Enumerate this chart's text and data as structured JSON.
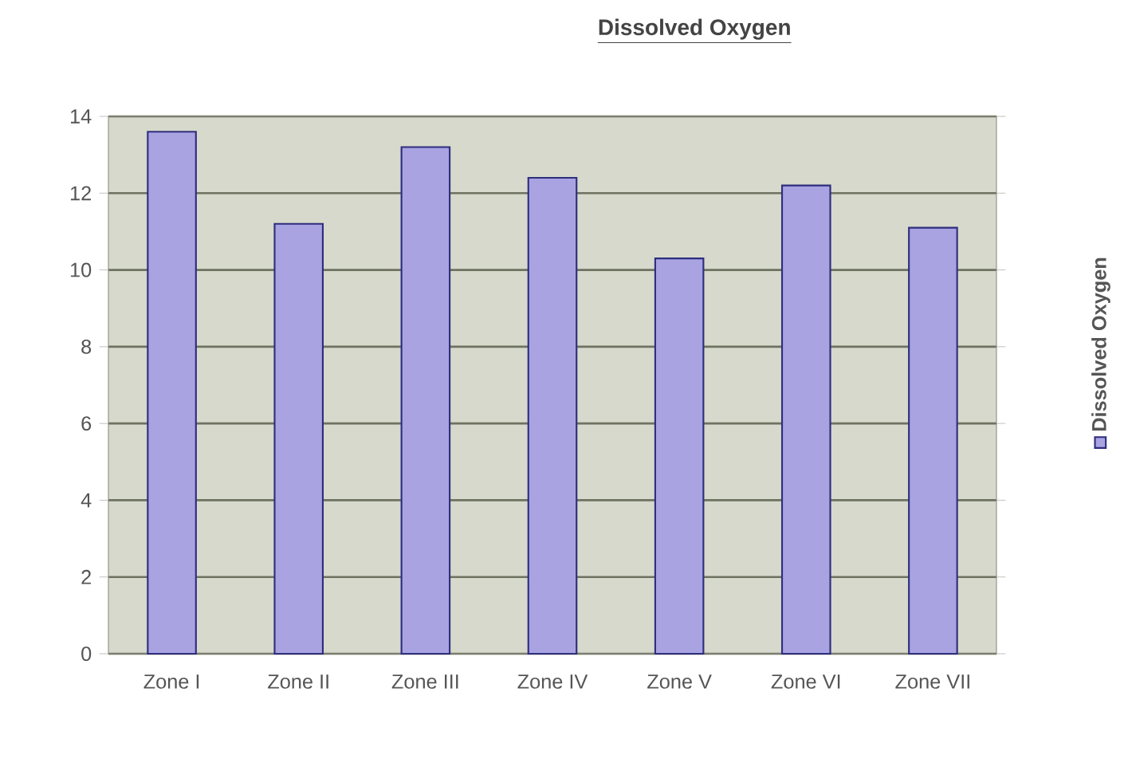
{
  "chart_data": {
    "type": "bar",
    "title": "Dissolved Oxygen",
    "categories": [
      "Zone I",
      "Zone II",
      "Zone III",
      "Zone IV",
      "Zone V",
      "Zone VI",
      "Zone VII"
    ],
    "series": [
      {
        "name": "Dissolved Oxygen",
        "color": "#a9a3e2",
        "values": [
          13.6,
          11.2,
          13.2,
          12.4,
          10.3,
          12.2,
          11.1
        ]
      }
    ],
    "ylim": [
      0,
      14
    ],
    "yticks": [
      0,
      2,
      4,
      6,
      8,
      10,
      12,
      14
    ],
    "grid": "y",
    "legend": "right"
  }
}
